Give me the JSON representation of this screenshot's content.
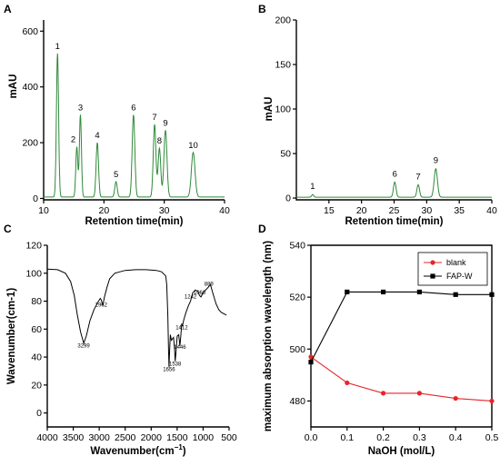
{
  "chart_data": [
    {
      "panel": "A",
      "type": "line",
      "xlabel": "Retention time(min)",
      "ylabel": "mAU",
      "xlim": [
        10,
        40
      ],
      "ylim": [
        -5,
        640
      ],
      "xticks": [
        10,
        20,
        30,
        40
      ],
      "yticks": [
        0,
        200,
        400,
        600
      ],
      "series_color": "#2f8a3a",
      "baseline": 5,
      "peaks": [
        {
          "label": "1",
          "x": 12.3,
          "y": 520,
          "w": 0.18
        },
        {
          "label": "2",
          "x": 15.5,
          "y": 185,
          "w": 0.17
        },
        {
          "label": "3",
          "x": 16.1,
          "y": 300,
          "w": 0.17
        },
        {
          "label": "4",
          "x": 18.9,
          "y": 200,
          "w": 0.2
        },
        {
          "label": "5",
          "x": 22.0,
          "y": 60,
          "w": 0.2
        },
        {
          "label": "6",
          "x": 24.9,
          "y": 300,
          "w": 0.22
        },
        {
          "label": "7",
          "x": 28.4,
          "y": 265,
          "w": 0.22
        },
        {
          "label": "8",
          "x": 29.2,
          "y": 180,
          "w": 0.22
        },
        {
          "label": "9",
          "x": 30.2,
          "y": 245,
          "w": 0.25
        },
        {
          "label": "10",
          "x": 34.8,
          "y": 165,
          "w": 0.3
        }
      ]
    },
    {
      "panel": "B",
      "type": "line",
      "xlabel": "Retention time(min)",
      "ylabel": "mAU",
      "xlim": [
        10,
        40
      ],
      "ylim": [
        -2,
        200
      ],
      "xticks": [
        15,
        20,
        25,
        30,
        35,
        40
      ],
      "yticks": [
        0,
        50,
        100,
        150,
        200
      ],
      "series_color": "#2f8a3a",
      "baseline": 1,
      "peaks": [
        {
          "label": "1",
          "x": 12.5,
          "y": 4,
          "w": 0.15
        },
        {
          "label": "6",
          "x": 25.1,
          "y": 18,
          "w": 0.2
        },
        {
          "label": "7",
          "x": 28.7,
          "y": 15,
          "w": 0.2
        },
        {
          "label": "9",
          "x": 31.4,
          "y": 33,
          "w": 0.25
        }
      ]
    },
    {
      "panel": "C",
      "type": "line",
      "xlabel": "Wavenumber(cm",
      "xlabel_sup": "−1",
      "xlabel_tail": ")",
      "ylabel": "Wavenumber(cm-1)",
      "xlim": [
        4000,
        500
      ],
      "ylim": [
        -10,
        120
      ],
      "xticks": [
        4000,
        3500,
        3000,
        2500,
        2000,
        1500,
        1000,
        500
      ],
      "yticks": [
        0,
        20,
        40,
        60,
        80,
        100,
        120
      ],
      "series_color": "#000000",
      "points": [
        [
          4000,
          103
        ],
        [
          3800,
          102.5
        ],
        [
          3650,
          100
        ],
        [
          3550,
          94
        ],
        [
          3480,
          84
        ],
        [
          3420,
          70
        ],
        [
          3360,
          58
        ],
        [
          3299,
          50
        ],
        [
          3250,
          55
        ],
        [
          3180,
          66
        ],
        [
          3100,
          74
        ],
        [
          3030,
          79
        ],
        [
          2980,
          82
        ],
        [
          2962,
          81
        ],
        [
          2930,
          77
        ],
        [
          2900,
          83
        ],
        [
          2850,
          90
        ],
        [
          2800,
          96
        ],
        [
          2700,
          100
        ],
        [
          2600,
          101
        ],
        [
          2500,
          102
        ],
        [
          2300,
          102.5
        ],
        [
          2100,
          102.5
        ],
        [
          1900,
          102
        ],
        [
          1800,
          101
        ],
        [
          1720,
          98
        ],
        [
          1700,
          92
        ],
        [
          1680,
          70
        ],
        [
          1665,
          45
        ],
        [
          1656,
          33
        ],
        [
          1645,
          45
        ],
        [
          1630,
          56
        ],
        [
          1610,
          52
        ],
        [
          1570,
          54
        ],
        [
          1548,
          45
        ],
        [
          1538,
          37
        ],
        [
          1525,
          42
        ],
        [
          1500,
          55
        ],
        [
          1470,
          56
        ],
        [
          1446,
          48
        ],
        [
          1430,
          55
        ],
        [
          1412,
          64
        ],
        [
          1400,
          62
        ],
        [
          1370,
          67
        ],
        [
          1330,
          72
        ],
        [
          1280,
          77
        ],
        [
          1242,
          80
        ],
        [
          1200,
          86
        ],
        [
          1150,
          88
        ],
        [
          1100,
          87
        ],
        [
          1068,
          84
        ],
        [
          1040,
          83
        ],
        [
          1000,
          86
        ],
        [
          950,
          88
        ],
        [
          900,
          90
        ],
        [
          860,
          92
        ],
        [
          800,
          84
        ],
        [
          750,
          78
        ],
        [
          700,
          74
        ],
        [
          650,
          72
        ],
        [
          600,
          71
        ],
        [
          550,
          70
        ]
      ],
      "annotations": [
        {
          "text": "3299",
          "x": 3299,
          "y": 47
        },
        {
          "text": "2962",
          "x": 2962,
          "y": 76
        },
        {
          "text": "1656",
          "x": 1656,
          "y": 30
        },
        {
          "text": "1538",
          "x": 1538,
          "y": 34
        },
        {
          "text": "1446",
          "x": 1446,
          "y": 46
        },
        {
          "text": "1412",
          "x": 1412,
          "y": 60
        },
        {
          "text": "1242",
          "x": 1242,
          "y": 82
        },
        {
          "text": "1068",
          "x": 1068,
          "y": 85
        },
        {
          "text": "889",
          "x": 889,
          "y": 91
        }
      ]
    },
    {
      "panel": "D",
      "type": "line",
      "xlabel": "NaOH (mol/L)",
      "ylabel": "maximum absorption wavelength (nm)",
      "xlim": [
        0,
        0.5
      ],
      "ylim": [
        470,
        540
      ],
      "xticks": [
        0.0,
        0.1,
        0.2,
        0.3,
        0.4,
        0.5
      ],
      "xtick_labels": [
        "0.0",
        "0.1",
        "0.2",
        "0.3",
        "0.4",
        "0.5"
      ],
      "yticks": [
        480,
        500,
        520,
        540
      ],
      "legend_position": "top-right",
      "series": [
        {
          "name": "blank",
          "color": "#e8232a",
          "marker": "circle",
          "x": [
            0.0,
            0.1,
            0.2,
            0.3,
            0.4,
            0.5
          ],
          "values": [
            497,
            487,
            483,
            483,
            481,
            480
          ]
        },
        {
          "name": "FAP-W",
          "color": "#000000",
          "marker": "square",
          "x": [
            0.0,
            0.1,
            0.2,
            0.3,
            0.4,
            0.5
          ],
          "values": [
            495,
            522,
            522,
            522,
            521,
            521
          ]
        }
      ]
    }
  ]
}
